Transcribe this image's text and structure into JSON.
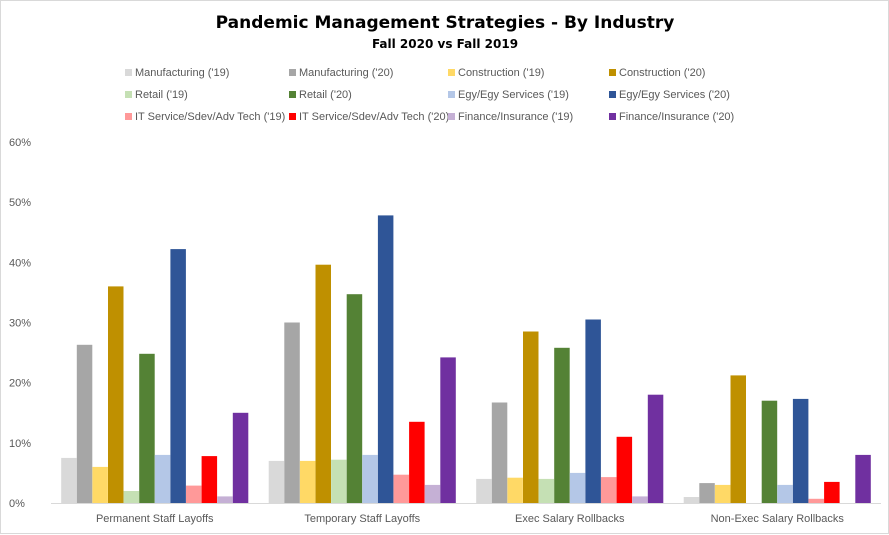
{
  "chart_data": {
    "type": "bar",
    "title": "Pandemic Management Strategies - By Industry",
    "subtitle": "Fall 2020  vs Fall 2019",
    "categories": [
      "Permanent Staff Layoffs",
      "Temporary Staff Layoffs",
      "Exec Salary Rollbacks",
      "Non-Exec Salary Rollbacks"
    ],
    "ylim": [
      0,
      60
    ],
    "yticks": [
      "0%",
      "10%",
      "20%",
      "30%",
      "40%",
      "50%",
      "60%"
    ],
    "ytick_values": [
      0,
      10,
      20,
      30,
      40,
      50,
      60
    ],
    "grid": false,
    "legend_position": "top",
    "series": [
      {
        "name": "Manufacturing ('19)",
        "color": "#d9d9d9",
        "values": [
          7.5,
          7.0,
          4.0,
          1.0
        ]
      },
      {
        "name": "Manufacturing ('20)",
        "color": "#a6a6a6",
        "values": [
          26.3,
          30.0,
          16.7,
          3.3
        ]
      },
      {
        "name": "Construction ('19)",
        "color": "#ffd966",
        "values": [
          6.0,
          7.0,
          4.2,
          3.0
        ]
      },
      {
        "name": "Construction ('20)",
        "color": "#bf9000",
        "values": [
          36.0,
          39.6,
          28.5,
          21.2
        ]
      },
      {
        "name": "Retail ('19)",
        "color": "#c5e0b4",
        "values": [
          2.0,
          7.2,
          4.0,
          0
        ]
      },
      {
        "name": "Retail ('20)",
        "color": "#548235",
        "values": [
          24.8,
          34.7,
          25.8,
          17.0
        ]
      },
      {
        "name": "Egy/Egy Services ('19)",
        "color": "#b4c7e7",
        "values": [
          8.0,
          8.0,
          5.0,
          3.0
        ]
      },
      {
        "name": "Egy/Egy Services ('20)",
        "color": "#2f5597",
        "values": [
          42.2,
          47.8,
          30.5,
          17.3
        ]
      },
      {
        "name": "IT Service/Sdev/Adv Tech ('19)",
        "color": "#ff9999",
        "values": [
          2.9,
          4.7,
          4.3,
          0.7
        ]
      },
      {
        "name": "IT Service/Sdev/Adv Tech ('20)",
        "color": "#ff0000",
        "values": [
          7.8,
          13.5,
          11.0,
          3.5
        ]
      },
      {
        "name": "Finance/Insurance ('19)",
        "color": "#c5b0d5",
        "values": [
          1.1,
          3.0,
          1.1,
          0
        ]
      },
      {
        "name": "Finance/Insurance ('20)",
        "color": "#7030a0",
        "values": [
          15.0,
          24.2,
          18.0,
          8.0
        ]
      }
    ]
  }
}
